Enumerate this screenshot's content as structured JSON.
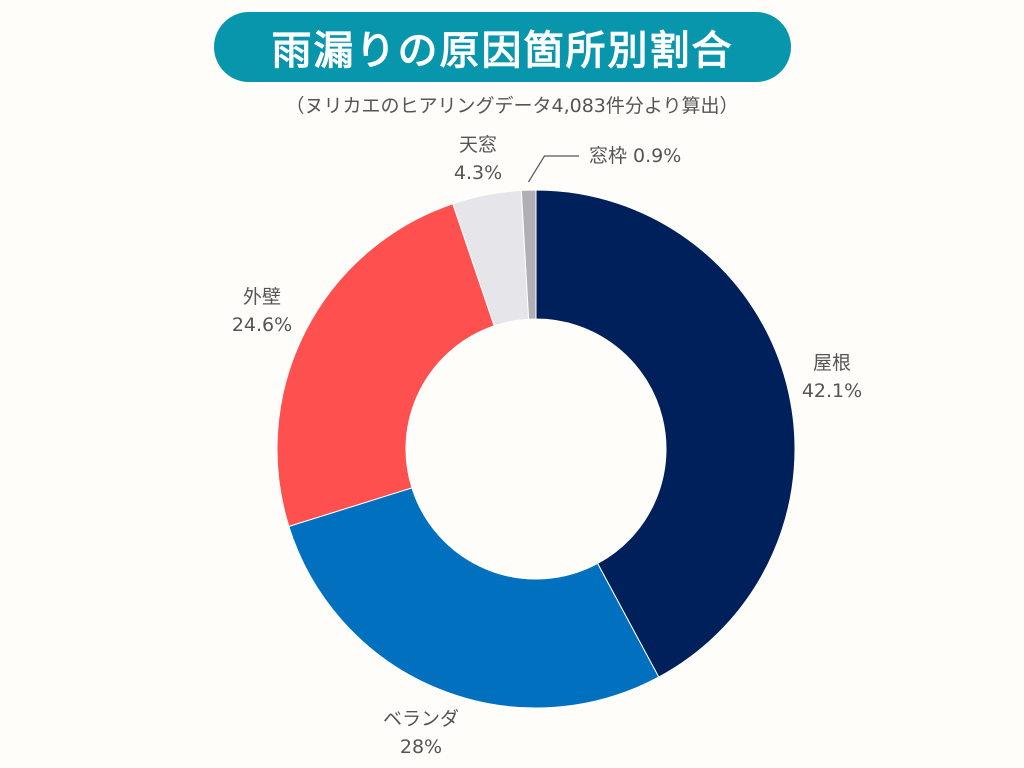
{
  "title": "雨漏りの原因箇所別割合",
  "subtitle": "（ヌリカエのヒアリングデータ4,083件分より算出）",
  "colors": {
    "title_bg": "#0896ad",
    "background": "#fefdf9"
  },
  "chart_data": {
    "type": "pie",
    "variant": "donut",
    "start": "12 o'clock",
    "direction": "clockwise",
    "slices": [
      {
        "label": "屋根",
        "value": 42.1,
        "value_label": "42.1%",
        "color": "#00205b"
      },
      {
        "label": "ベランダ",
        "value": 28,
        "value_label": "28%",
        "color": "#0070bf"
      },
      {
        "label": "外壁",
        "value": 24.6,
        "value_label": "24.6%",
        "color": "#ff5050"
      },
      {
        "label": "天窓",
        "value": 4.3,
        "value_label": "4.3%",
        "color": "#e6e6ea"
      },
      {
        "label": "窓枠",
        "value": 0.9,
        "value_label": "0.9%",
        "color": "#b0b0b4"
      }
    ]
  }
}
